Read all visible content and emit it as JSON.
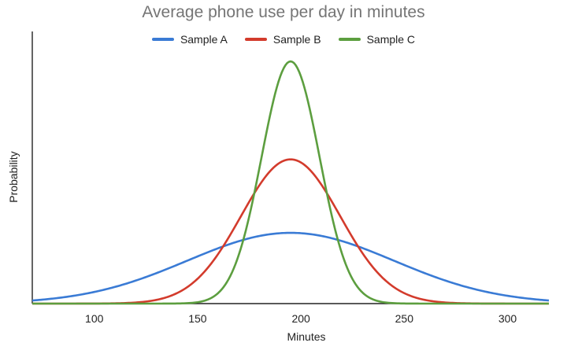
{
  "chart_data": {
    "type": "line",
    "title": "Average phone use per day in minutes",
    "xlabel": "Minutes",
    "ylabel": "Probability",
    "xlim": [
      70,
      320
    ],
    "ylim": [
      0,
      1.0
    ],
    "x_ticks": [
      100,
      150,
      200,
      250,
      300
    ],
    "grid": false,
    "legend": "top",
    "series": [
      {
        "name": "Sample A",
        "color": "#3a7bd5",
        "mean": 195,
        "sd": 50,
        "peak": 0.26
      },
      {
        "name": "Sample B",
        "color": "#d33b2c",
        "mean": 195,
        "sd": 24,
        "peak": 0.53
      },
      {
        "name": "Sample C",
        "color": "#5c9e3f",
        "mean": 195,
        "sd": 14,
        "peak": 0.89
      }
    ]
  }
}
